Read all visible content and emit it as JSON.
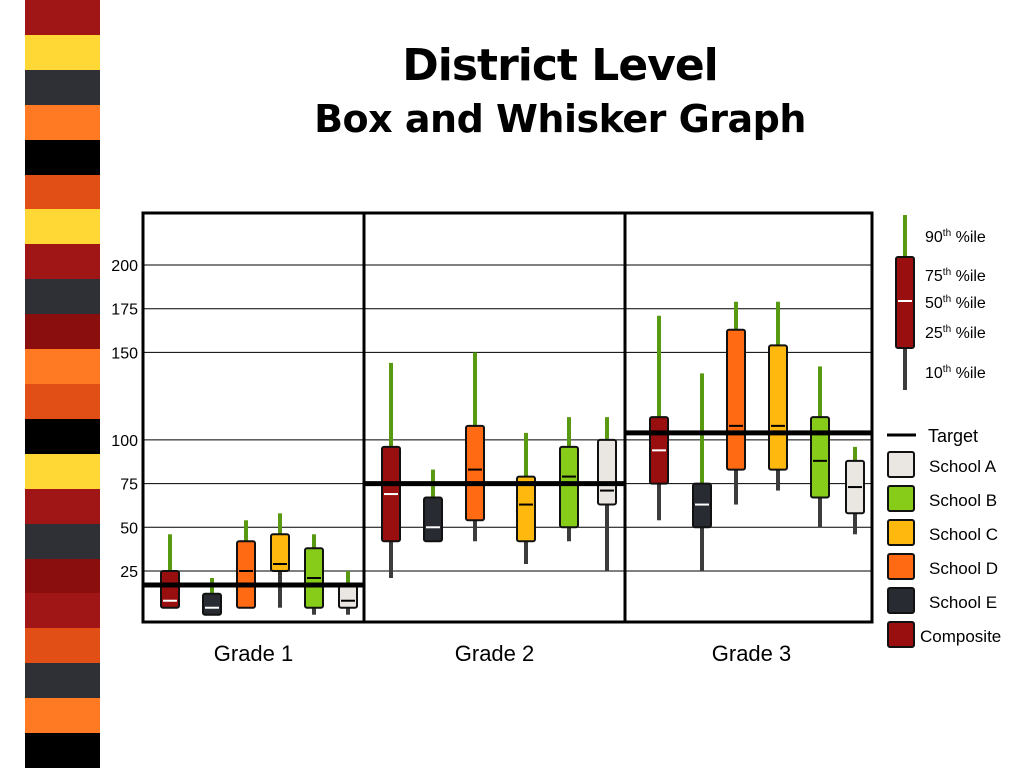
{
  "title": "District Level",
  "subtitle": "Box and Whisker Graph",
  "decor": {
    "stripe_colors": [
      "#A01515",
      "#FFD836",
      "#2E3035",
      "#FF7A22",
      "#000000",
      "#E14E16",
      "#FFD836",
      "#A01515",
      "#2E3035",
      "#8A0E0E",
      "#FF7A22",
      "#E14E16",
      "#000000",
      "#FFD836",
      "#A01515",
      "#2E3035",
      "#8A0E0E",
      "#A01515",
      "#E14E16",
      "#2E3035",
      "#FF7A22",
      "#000000"
    ]
  },
  "chart_data": {
    "type": "box",
    "title": "",
    "xlabel": "",
    "ylabel": "",
    "y_ticks": [
      "25",
      "50",
      "75",
      "100",
      "150",
      "175",
      "200"
    ],
    "ylim": [
      0,
      200
    ],
    "grid": true,
    "legend_position": "right",
    "series": [
      {
        "name": "Composite",
        "color": "#990E0E",
        "median_color": "#FFFFFF"
      },
      {
        "name": "School E",
        "color": "#282B31",
        "median_color": "#FFFFFF"
      },
      {
        "name": "School D",
        "color": "#FF6A12",
        "median_color": "#000000"
      },
      {
        "name": "School C",
        "color": "#FFB80E",
        "median_color": "#000000"
      },
      {
        "name": "School B",
        "color": "#88CC1A",
        "median_color": "#000000"
      },
      {
        "name": "School A",
        "color": "#EAE7E2",
        "median_color": "#000000"
      }
    ],
    "groups": [
      {
        "label": "Grade 1",
        "target": 17,
        "boxes": [
          {
            "series": "Composite",
            "p10": 4,
            "p25": 4,
            "p50": 8,
            "p75": 25,
            "p90": 46
          },
          {
            "series": "School E",
            "p10": 0,
            "p25": 0,
            "p50": 4,
            "p75": 12,
            "p90": 21
          },
          {
            "series": "School D",
            "p10": 4,
            "p25": 4,
            "p50": 25,
            "p75": 42,
            "p90": 54
          },
          {
            "series": "School C",
            "p10": 4,
            "p25": 25,
            "p50": 29,
            "p75": 46,
            "p90": 58
          },
          {
            "series": "School B",
            "p10": 0,
            "p25": 4,
            "p50": 21,
            "p75": 38,
            "p90": 46
          },
          {
            "series": "School A",
            "p10": 0,
            "p25": 4,
            "p50": 8,
            "p75": 17,
            "p90": 25
          }
        ]
      },
      {
        "label": "Grade 2",
        "target": 75,
        "boxes": [
          {
            "series": "Composite",
            "p10": 21,
            "p25": 42,
            "p50": 69,
            "p75": 96,
            "p90": 144
          },
          {
            "series": "School E",
            "p10": 42,
            "p25": 42,
            "p50": 50,
            "p75": 67,
            "p90": 83
          },
          {
            "series": "School D",
            "p10": 42,
            "p25": 54,
            "p50": 83,
            "p75": 108,
            "p90": 150
          },
          {
            "series": "School C",
            "p10": 29,
            "p25": 42,
            "p50": 63,
            "p75": 79,
            "p90": 104
          },
          {
            "series": "School B",
            "p10": 42,
            "p25": 50,
            "p50": 79,
            "p75": 96,
            "p90": 113
          },
          {
            "series": "School A",
            "p10": 25,
            "p25": 63,
            "p50": 71,
            "p75": 100,
            "p90": 113
          }
        ]
      },
      {
        "label": "Grade 3",
        "target": 104,
        "boxes": [
          {
            "series": "Composite",
            "p10": 54,
            "p25": 75,
            "p50": 94,
            "p75": 113,
            "p90": 171
          },
          {
            "series": "School E",
            "p10": 25,
            "p25": 50,
            "p50": 63,
            "p75": 75,
            "p90": 138
          },
          {
            "series": "School D",
            "p10": 63,
            "p25": 83,
            "p50": 108,
            "p75": 163,
            "p90": 179
          },
          {
            "series": "School C",
            "p10": 71,
            "p25": 83,
            "p50": 108,
            "p75": 154,
            "p90": 179
          },
          {
            "series": "School B",
            "p10": 50,
            "p25": 67,
            "p50": 88,
            "p75": 113,
            "p90": 142
          },
          {
            "series": "School A",
            "p10": 46,
            "p25": 58,
            "p50": 73,
            "p75": 88,
            "p90": 96
          }
        ]
      }
    ],
    "legend": {
      "key_items": [
        {
          "text": "90",
          "sup": "th",
          "suffix": " %ile"
        },
        {
          "text": "75",
          "sup": "th",
          "suffix": " %ile"
        },
        {
          "text": "50",
          "sup": "th",
          "suffix": " %ile"
        },
        {
          "text": "25",
          "sup": "th",
          "suffix": " %ile"
        },
        {
          "text": "10",
          "sup": "th",
          "suffix": " %ile"
        }
      ],
      "target_label": "Target",
      "series_order": [
        "School A",
        "School B",
        "School C",
        "School D",
        "School E",
        "Composite"
      ]
    }
  }
}
